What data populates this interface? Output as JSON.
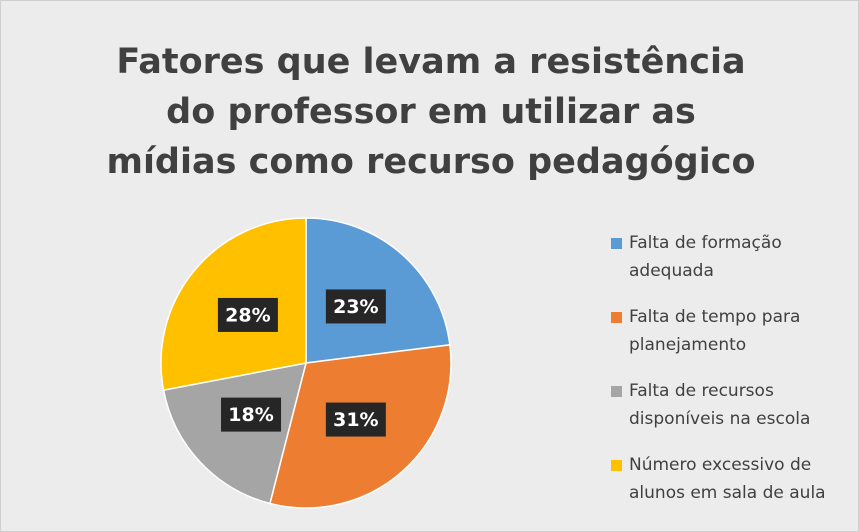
{
  "chart_data": {
    "type": "pie",
    "title": "Fatores que levam a resistência do professor em utilizar as mídias como recurso pedagógico",
    "categories": [
      "Falta de formação adequada",
      "Falta de tempo para planejamento",
      "Falta de recursos disponíveis na escola",
      "Número excessivo de alunos em sala de aula"
    ],
    "values": [
      23,
      31,
      18,
      28
    ],
    "value_labels": [
      "23%",
      "31%",
      "18%",
      "28%"
    ],
    "colors": [
      "#5b9bd5",
      "#ed7d31",
      "#a5a5a5",
      "#ffc000"
    ],
    "legend": "right"
  }
}
